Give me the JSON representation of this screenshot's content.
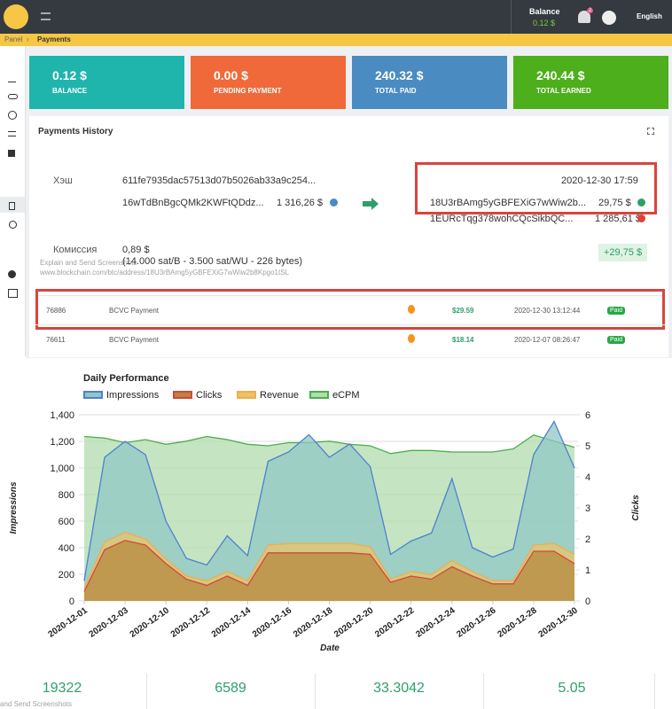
{
  "header": {
    "balance_label": "Balance",
    "balance_value": "0.12 $",
    "notifications": "2",
    "language": "English"
  },
  "breadcrumb": [
    "Panel",
    "Payments"
  ],
  "cards": [
    {
      "value": "0.12 $",
      "label": "BALANCE"
    },
    {
      "value": "0.00 $",
      "label": "PENDING PAYMENT"
    },
    {
      "value": "240.32 $",
      "label": "TOTAL PAID"
    },
    {
      "value": "240.44 $",
      "label": "TOTAL EARNED"
    }
  ],
  "history": {
    "title": "Payments History",
    "hash_label": "Хэш",
    "hash": "611fe7935dac57513d07b5026ab33a9c254...",
    "from_address": "16wTdBnBgcQMk2KWFtQDdz...",
    "from_amount": "1 316,26 $",
    "date": "2020-12-30 17:59",
    "to_address": "18U3rBAmg5yGBFEXiG7wWiw2b...",
    "to_amount": "29,75 $",
    "change_address": "1EURcTqg378wohCQcSikbQC...",
    "change_amount": "1 285,61 $",
    "fee_label": "Комиссия",
    "fee": "0,89 $",
    "fee_details": "(14.000 sat/B - 3.500 sat/WU - 226 bytes)",
    "received": "+29,75 $"
  },
  "payments": {
    "rows": [
      [
        "76886",
        "BCVC Payment",
        "$29.59",
        "2020-12-30 13:12:44",
        "Paid"
      ],
      [
        "76611",
        "BCVC Payment",
        "$18.14",
        "2020-12-07 08:26:47",
        "Paid"
      ]
    ]
  },
  "watermarks": [
    "Explain and Send Screenshots",
    "www.blockchain.com/btc/address/18U3rBAmg5yGBFEXiG7wWiw2b8Kpgo1tSL",
    "and Send Screenshots"
  ],
  "chart_data": {
    "type": "area",
    "title": "Daily Performance",
    "x_label": "Date",
    "y_label": "Impressions",
    "y2_label": "Clicks",
    "categories": [
      "2020-12-01",
      null,
      "2020-12-03",
      null,
      "2020-12-10",
      null,
      "2020-12-12",
      null,
      "2020-12-14",
      null,
      "2020-12-16",
      null,
      "2020-12-18",
      null,
      "2020-12-20",
      null,
      "2020-12-22",
      null,
      "2020-12-24",
      null,
      "2020-12-26",
      null,
      "2020-12-28",
      null,
      "2020-12-30"
    ],
    "series": [
      {
        "name": "Impressions",
        "color": "#4f7fd0",
        "fill": "#8fc7c4",
        "axis": "y",
        "values": [
          150,
          1080,
          1200,
          1100,
          600,
          320,
          270,
          490,
          340,
          1050,
          1120,
          1250,
          1080,
          1180,
          1010,
          350,
          450,
          510,
          920,
          400,
          330,
          390,
          1100,
          1350,
          1000
        ]
      },
      {
        "name": "Clicks",
        "color": "#d9453b",
        "fill": "#b5893f",
        "axis": "y2",
        "values": [
          0.3,
          1.65,
          1.95,
          1.8,
          1.2,
          0.7,
          0.5,
          0.8,
          0.5,
          1.55,
          1.55,
          1.55,
          1.55,
          1.55,
          1.5,
          0.6,
          0.8,
          0.7,
          1.1,
          0.8,
          0.55,
          0.55,
          1.6,
          1.6,
          1.2
        ]
      },
      {
        "name": "Revenue",
        "color": "#f0ad4e",
        "fill": "#e8c56a",
        "axis": "y2",
        "values": [
          0.4,
          1.9,
          2.2,
          2.0,
          1.35,
          0.8,
          0.65,
          0.95,
          0.65,
          1.8,
          1.85,
          1.85,
          1.85,
          1.85,
          1.75,
          0.7,
          0.95,
          0.85,
          1.3,
          0.95,
          0.65,
          0.65,
          1.8,
          1.85,
          1.5
        ]
      },
      {
        "name": "eCPM",
        "color": "#4cae4c",
        "fill": "#b2dcae",
        "axis": "y2",
        "values": [
          5.3,
          5.25,
          5.1,
          5.2,
          5.05,
          5.15,
          5.3,
          5.2,
          5.05,
          5.0,
          5.1,
          5.1,
          5.15,
          5.05,
          5.0,
          4.75,
          4.85,
          4.85,
          4.8,
          4.8,
          4.8,
          4.9,
          5.35,
          5.15,
          4.95
        ]
      }
    ],
    "ylim": [
      0,
      1400
    ],
    "yticks": [
      0,
      200,
      400,
      600,
      800,
      {
        "value": 1000,
        "label": "1,000"
      },
      {
        "value": 1200,
        "label": "1,200"
      },
      {
        "value": 1400,
        "label": "1,400"
      }
    ],
    "y2lim": [
      0,
      6
    ],
    "y2ticks": [
      0,
      1,
      2,
      3,
      4,
      5,
      6
    ],
    "grid": true
  },
  "stats": [
    "19322",
    "6589",
    "33.3042",
    "5.05"
  ]
}
